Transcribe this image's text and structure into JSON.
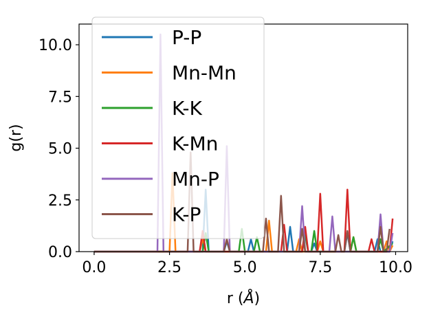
{
  "chart_data": {
    "type": "line",
    "title": "",
    "xlabel": "r ($\\AA$)",
    "xlabel_parts": {
      "prefix": "r (",
      "symbol": "Å",
      "suffix": ")"
    },
    "ylabel": "g(r)",
    "xlim": [
      -0.5,
      10.4
    ],
    "ylim": [
      0,
      11.0
    ],
    "xticks": [
      0.0,
      2.5,
      5.0,
      7.5,
      10.0
    ],
    "xtick_labels": [
      "0.0",
      "2.5",
      "5.0",
      "7.5",
      "10.0"
    ],
    "yticks": [
      0.0,
      2.5,
      5.0,
      7.5,
      10.0
    ],
    "ytick_labels": [
      "0.0",
      "2.5",
      "5.0",
      "7.5",
      "10.0"
    ],
    "grid": false,
    "legend_placement": "upper-left",
    "series": [
      {
        "name": "P-P",
        "color": "#1f77b4",
        "x": [
          0,
          3.6,
          3.7,
          3.8,
          4.3,
          4.4,
          4.5,
          5.1,
          5.2,
          5.3,
          6.4,
          6.5,
          6.6,
          7.2,
          7.3,
          7.4,
          8.3,
          8.4,
          8.5,
          9.3,
          9.4,
          9.5,
          9.8,
          9.9
        ],
        "y": [
          0,
          0,
          3.0,
          0,
          0,
          0.5,
          0,
          0,
          0.6,
          0,
          0,
          1.2,
          0,
          0,
          0.4,
          0,
          0,
          0.9,
          0,
          0,
          0.6,
          0,
          0,
          0.5
        ]
      },
      {
        "name": "Mn-Mn",
        "color": "#ff7f0e",
        "x": [
          0,
          2.5,
          2.6,
          2.7,
          3.5,
          3.6,
          3.7,
          5.7,
          5.8,
          5.9,
          6.7,
          6.8,
          6.9,
          7.4,
          7.5,
          7.6,
          8.5,
          8.6,
          8.7,
          9.6,
          9.7,
          9.8,
          9.9
        ],
        "y": [
          0,
          0,
          3.8,
          0,
          0,
          0.6,
          0,
          0,
          1.5,
          0,
          0,
          0.6,
          0,
          0,
          0.5,
          0,
          0,
          0.7,
          0,
          0,
          0.5,
          0,
          0.3
        ]
      },
      {
        "name": "K-K",
        "color": "#2ca02c",
        "x": [
          0,
          3.6,
          3.7,
          3.8,
          4.8,
          4.9,
          5.0,
          5.3,
          5.4,
          5.5,
          6.9,
          7.0,
          7.1,
          7.2,
          7.3,
          7.4,
          8.5,
          8.6,
          8.7,
          9.4,
          9.5,
          9.6,
          9.9
        ],
        "y": [
          0,
          0,
          0.9,
          0,
          0,
          1.1,
          0,
          0,
          0.7,
          0,
          0,
          0.8,
          0,
          0,
          1.0,
          0,
          0,
          0.7,
          0,
          0,
          0.6,
          0,
          0.4
        ]
      },
      {
        "name": "K-Mn",
        "color": "#d62728",
        "x": [
          0,
          3.5,
          3.6,
          3.7,
          6.2,
          6.3,
          6.4,
          6.9,
          7.0,
          7.1,
          7.4,
          7.5,
          7.6,
          8.3,
          8.4,
          8.5,
          9.1,
          9.2,
          9.3,
          9.8,
          9.9
        ],
        "y": [
          0,
          0,
          1.0,
          0,
          0,
          1.3,
          0,
          0,
          1.2,
          0,
          0,
          2.8,
          0,
          0,
          3.0,
          0,
          0,
          0.6,
          0,
          0,
          1.6
        ]
      },
      {
        "name": "Mn-P",
        "color": "#9467bd",
        "x": [
          0,
          2.1,
          2.2,
          2.3,
          4.3,
          4.4,
          4.5,
          6.8,
          6.9,
          7.0,
          7.8,
          7.9,
          8.0,
          9.4,
          9.5,
          9.6,
          9.8,
          9.9
        ],
        "y": [
          0,
          0,
          10.5,
          0,
          0,
          5.1,
          0,
          0,
          2.2,
          0,
          0,
          1.7,
          0,
          0,
          1.8,
          0,
          0,
          0.9
        ]
      },
      {
        "name": "K-P",
        "color": "#8c564b",
        "x": [
          0,
          3.1,
          3.2,
          3.3,
          4.3,
          4.4,
          4.5,
          5.6,
          5.7,
          5.8,
          6.1,
          6.2,
          6.3,
          6.8,
          6.9,
          7.0,
          8.0,
          8.1,
          8.2,
          8.3,
          8.4,
          8.5,
          9.4,
          9.5,
          9.6,
          9.7,
          9.8
        ],
        "y": [
          0,
          0,
          4.8,
          0,
          0,
          0.6,
          0,
          0,
          1.6,
          0,
          0,
          2.7,
          0,
          0,
          1.1,
          0,
          0,
          0.8,
          0,
          0,
          1.0,
          0,
          0,
          1.2,
          0,
          0,
          1.1
        ]
      }
    ]
  }
}
